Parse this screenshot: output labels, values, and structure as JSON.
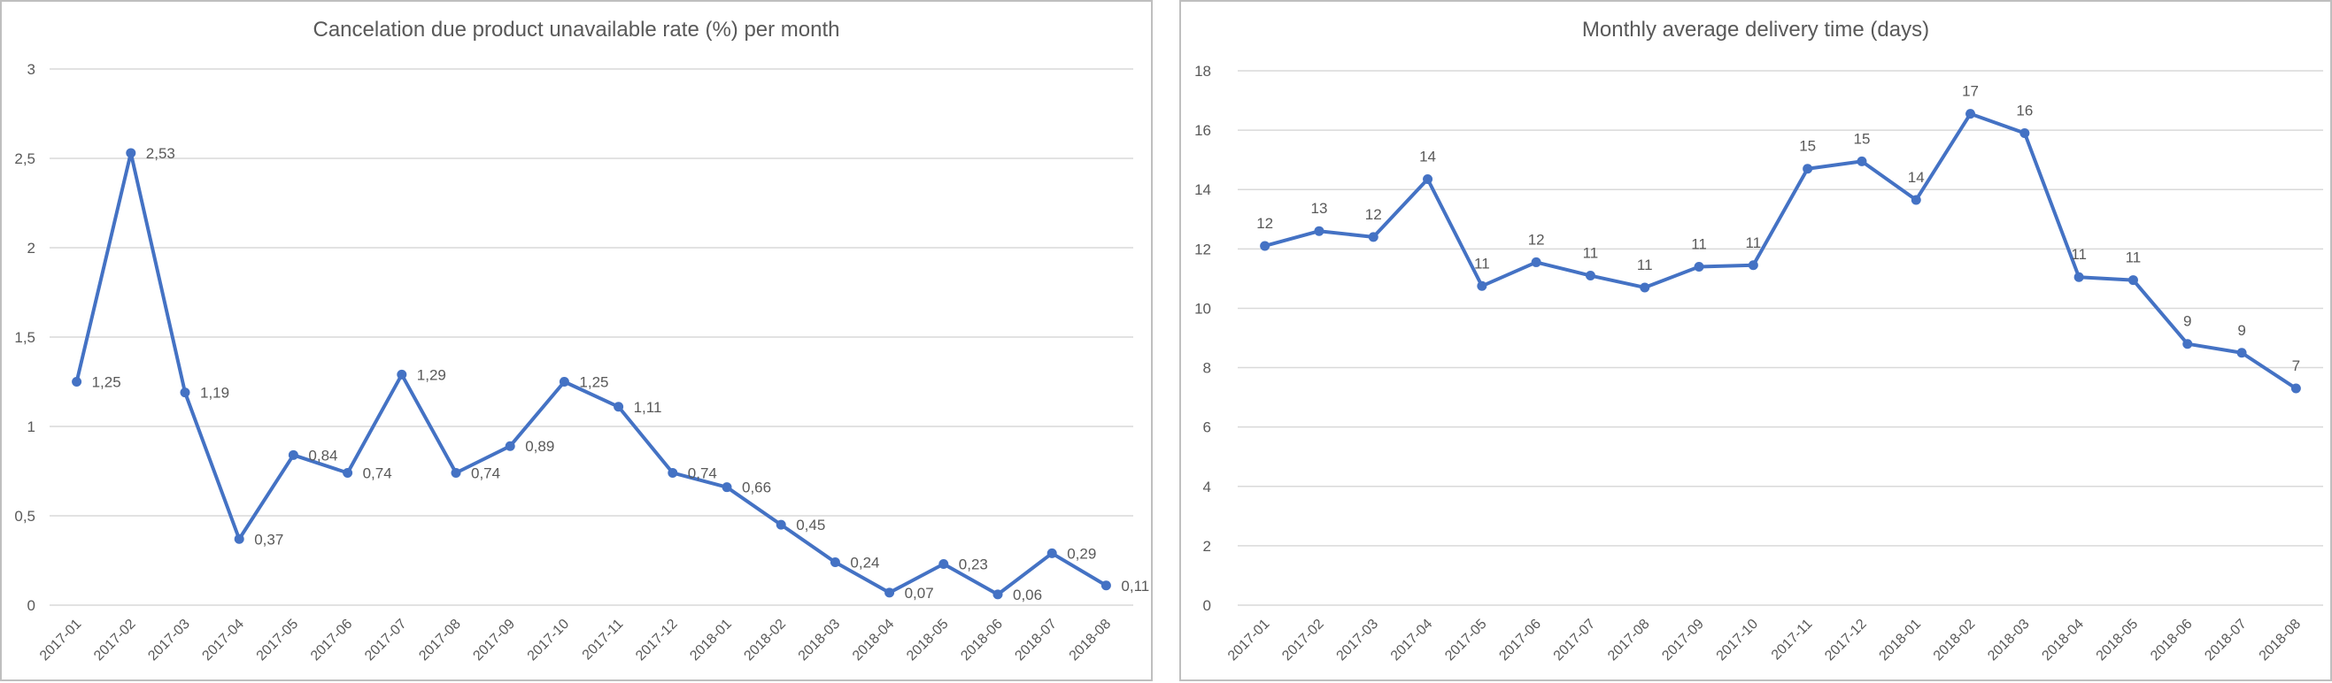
{
  "chart_data": [
    {
      "type": "line",
      "title": "Cancelation due product unavailable rate (%) per month",
      "xlabel": "",
      "ylabel": "",
      "ylim": [
        0,
        3
      ],
      "yticks": [
        "0",
        "0,5",
        "1",
        "1,5",
        "2",
        "2,5",
        "3"
      ],
      "grid": true,
      "color": "#4472C4",
      "categories": [
        "2017-01",
        "2017-02",
        "2017-03",
        "2017-04",
        "2017-05",
        "2017-06",
        "2017-07",
        "2017-08",
        "2017-09",
        "2017-10",
        "2017-11",
        "2017-12",
        "2018-01",
        "2018-02",
        "2018-03",
        "2018-04",
        "2018-05",
        "2018-06",
        "2018-07",
        "2018-08"
      ],
      "values": [
        1.25,
        2.53,
        1.19,
        0.37,
        0.84,
        0.74,
        1.29,
        0.74,
        0.89,
        1.25,
        1.11,
        0.74,
        0.66,
        0.45,
        0.24,
        0.07,
        0.23,
        0.06,
        0.29,
        0.11
      ],
      "labels": [
        "1,25",
        "2,53",
        "1,19",
        "0,37",
        "0,84",
        "0,74",
        "1,29",
        "0,74",
        "0,89",
        "1,25",
        "1,11",
        "0,74",
        "0,66",
        "0,45",
        "0,24",
        "0,07",
        "0,23",
        "0,06",
        "0,29",
        "0,11"
      ]
    },
    {
      "type": "line",
      "title": "Monthly average delivery time (days)",
      "xlabel": "",
      "ylabel": "",
      "ylim": [
        0,
        18
      ],
      "yticks": [
        "0",
        "2",
        "4",
        "6",
        "8",
        "10",
        "12",
        "14",
        "16",
        "18"
      ],
      "grid": true,
      "color": "#4472C4",
      "categories": [
        "2017-01",
        "2017-02",
        "2017-03",
        "2017-04",
        "2017-05",
        "2017-06",
        "2017-07",
        "2017-08",
        "2017-09",
        "2017-10",
        "2017-11",
        "2017-12",
        "2018-01",
        "2018-02",
        "2018-03",
        "2018-04",
        "2018-05",
        "2018-06",
        "2018-07",
        "2018-08"
      ],
      "values": [
        12.1,
        12.6,
        12.4,
        14.35,
        10.75,
        11.55,
        11.1,
        10.7,
        11.4,
        11.45,
        14.7,
        14.95,
        13.65,
        16.55,
        15.9,
        11.05,
        10.95,
        8.8,
        8.5,
        7.3
      ],
      "labels": [
        "12",
        "13",
        "12",
        "14",
        "11",
        "12",
        "11",
        "11",
        "11",
        "11",
        "15",
        "15",
        "14",
        "17",
        "16",
        "11",
        "11",
        "9",
        "9",
        "7"
      ]
    }
  ]
}
